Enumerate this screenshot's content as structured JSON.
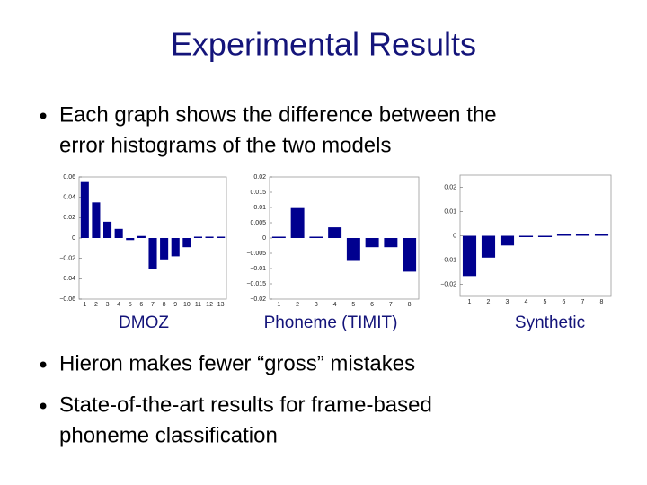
{
  "slide": {
    "title": "Experimental Results",
    "bullets": [
      {
        "lines": [
          "Each graph shows the difference between the",
          "error histograms of the two models"
        ]
      },
      {
        "lines": [
          "Hieron makes fewer “gross” mistakes"
        ]
      },
      {
        "lines": [
          "State-of-the-art results for frame-based",
          "phoneme classification"
        ]
      }
    ]
  },
  "chart_data": [
    {
      "type": "bar",
      "xlabel": "DMOZ",
      "color": "#00008f",
      "categories": [
        "1",
        "2",
        "3",
        "4",
        "5",
        "6",
        "7",
        "8",
        "9",
        "10",
        "11",
        "12",
        "13"
      ],
      "values": [
        0.055,
        0.035,
        0.016,
        0.009,
        -0.002,
        0.002,
        -0.03,
        -0.021,
        -0.018,
        -0.009,
        0,
        0,
        0
      ],
      "ylim": [
        -0.06,
        0.06
      ],
      "yticks": [
        {
          "value": -0.06,
          "label": "−0.06"
        },
        {
          "value": -0.04,
          "label": "−0.04"
        },
        {
          "value": -0.02,
          "label": "−0.02"
        },
        0,
        0.02,
        0.04,
        0.06
      ]
    },
    {
      "type": "bar",
      "xlabel": "Phoneme (TIMIT)",
      "color": "#00008f",
      "categories": [
        "1",
        "2",
        "3",
        "4",
        "5",
        "6",
        "7",
        "8"
      ],
      "values": [
        0,
        0.0098,
        0.0002,
        0.0035,
        -0.0075,
        -0.003,
        -0.003,
        -0.011
      ],
      "ylim": [
        -0.02,
        0.02
      ],
      "yticks": [
        {
          "value": -0.02,
          "label": "−0.02"
        },
        {
          "value": -0.015,
          "label": "−0.015"
        },
        {
          "value": -0.01,
          "label": "−0.01"
        },
        {
          "value": -0.005,
          "label": "−0.005"
        },
        0,
        0.005,
        0.01,
        0.015,
        0.02
      ]
    },
    {
      "type": "bar",
      "xlabel": "Synthetic",
      "color": "#00008f",
      "categories": [
        "1",
        "2",
        "3",
        "4",
        "5",
        "6",
        "7",
        "8"
      ],
      "values": [
        -0.0166,
        -0.009,
        -0.004,
        -0.0005,
        -0.0005,
        0,
        0,
        0
      ],
      "ylim": [
        -0.025,
        0.025
      ],
      "yticks": [
        {
          "value": -0.02,
          "label": "−0.02"
        },
        {
          "value": -0.01,
          "label": "−0.01"
        },
        0,
        0.01,
        0.02
      ]
    }
  ]
}
